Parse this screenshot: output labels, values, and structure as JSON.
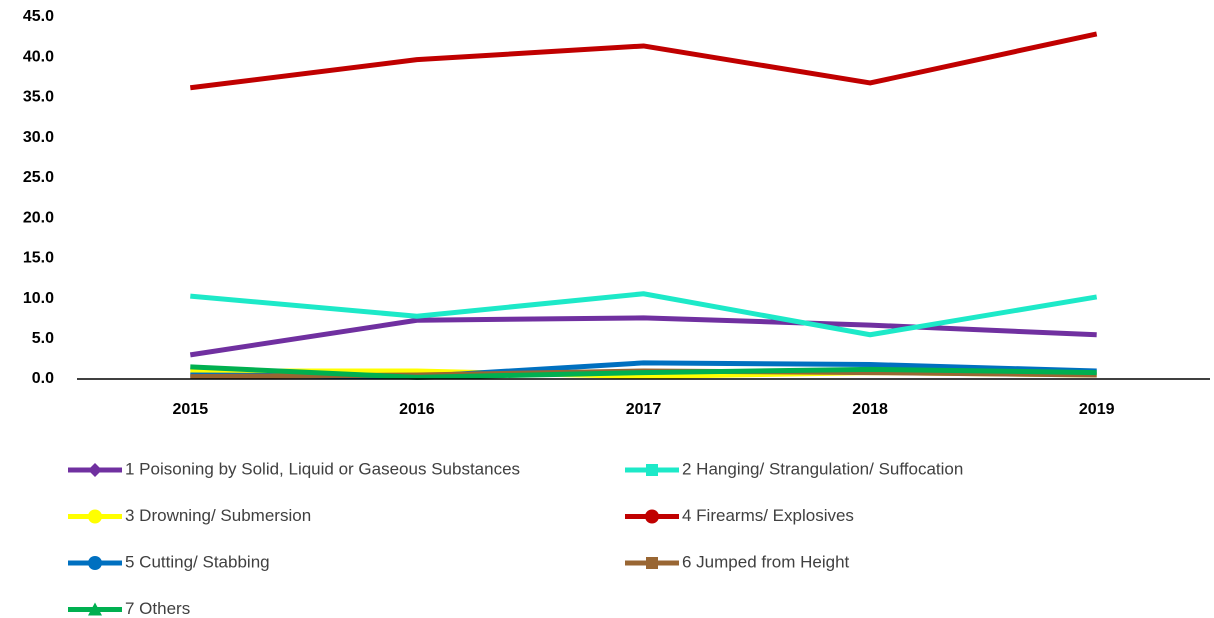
{
  "chart_data": {
    "type": "line",
    "categories": [
      "2015",
      "2016",
      "2017",
      "2018",
      "2019"
    ],
    "ylim": [
      0,
      45
    ],
    "yticks": [
      {
        "value": 0,
        "label": "0.0"
      },
      {
        "value": 5,
        "label": "5.0"
      },
      {
        "value": 10,
        "label": "10.0"
      },
      {
        "value": 15,
        "label": "15.0"
      },
      {
        "value": 20,
        "label": "20.0"
      },
      {
        "value": 25,
        "label": "25.0"
      },
      {
        "value": 30,
        "label": "30.0"
      },
      {
        "value": 35,
        "label": "35.0"
      },
      {
        "value": 40,
        "label": "40.0"
      },
      {
        "value": 45,
        "label": "45.0"
      }
    ],
    "series": [
      {
        "name": "1 Poisoning by Solid, Liquid or Gaseous Substances",
        "color": "#7030a0",
        "marker": "diamond",
        "values": [
          3.0,
          7.3,
          7.6,
          6.7,
          5.5
        ]
      },
      {
        "name": "2 Hanging/ Strangulation/ Suffocation",
        "color": "#1de9c8",
        "marker": "square",
        "values": [
          10.3,
          7.8,
          10.6,
          5.5,
          10.2
        ]
      },
      {
        "name": "3 Drowning/ Submersion",
        "color": "#ffff00",
        "marker": "circle",
        "values": [
          1.0,
          1.0,
          0.3,
          0.8,
          0.5
        ]
      },
      {
        "name": "4 Firearms/ Explosives",
        "color": "#c00000",
        "marker": "circle",
        "values": [
          36.2,
          39.7,
          41.4,
          36.8,
          42.9
        ]
      },
      {
        "name": "5 Cutting/ Stabbing",
        "color": "#0070c0",
        "marker": "circle",
        "values": [
          0.5,
          0.3,
          2.0,
          1.8,
          1.0
        ]
      },
      {
        "name": "6 Jumped from Height",
        "color": "#996633",
        "marker": "square",
        "values": [
          0.3,
          0.5,
          1.0,
          0.8,
          0.5
        ]
      },
      {
        "name": "7 Others",
        "color": "#00b050",
        "marker": "triangle",
        "values": [
          1.5,
          0.2,
          0.8,
          1.2,
          0.8
        ]
      }
    ]
  }
}
